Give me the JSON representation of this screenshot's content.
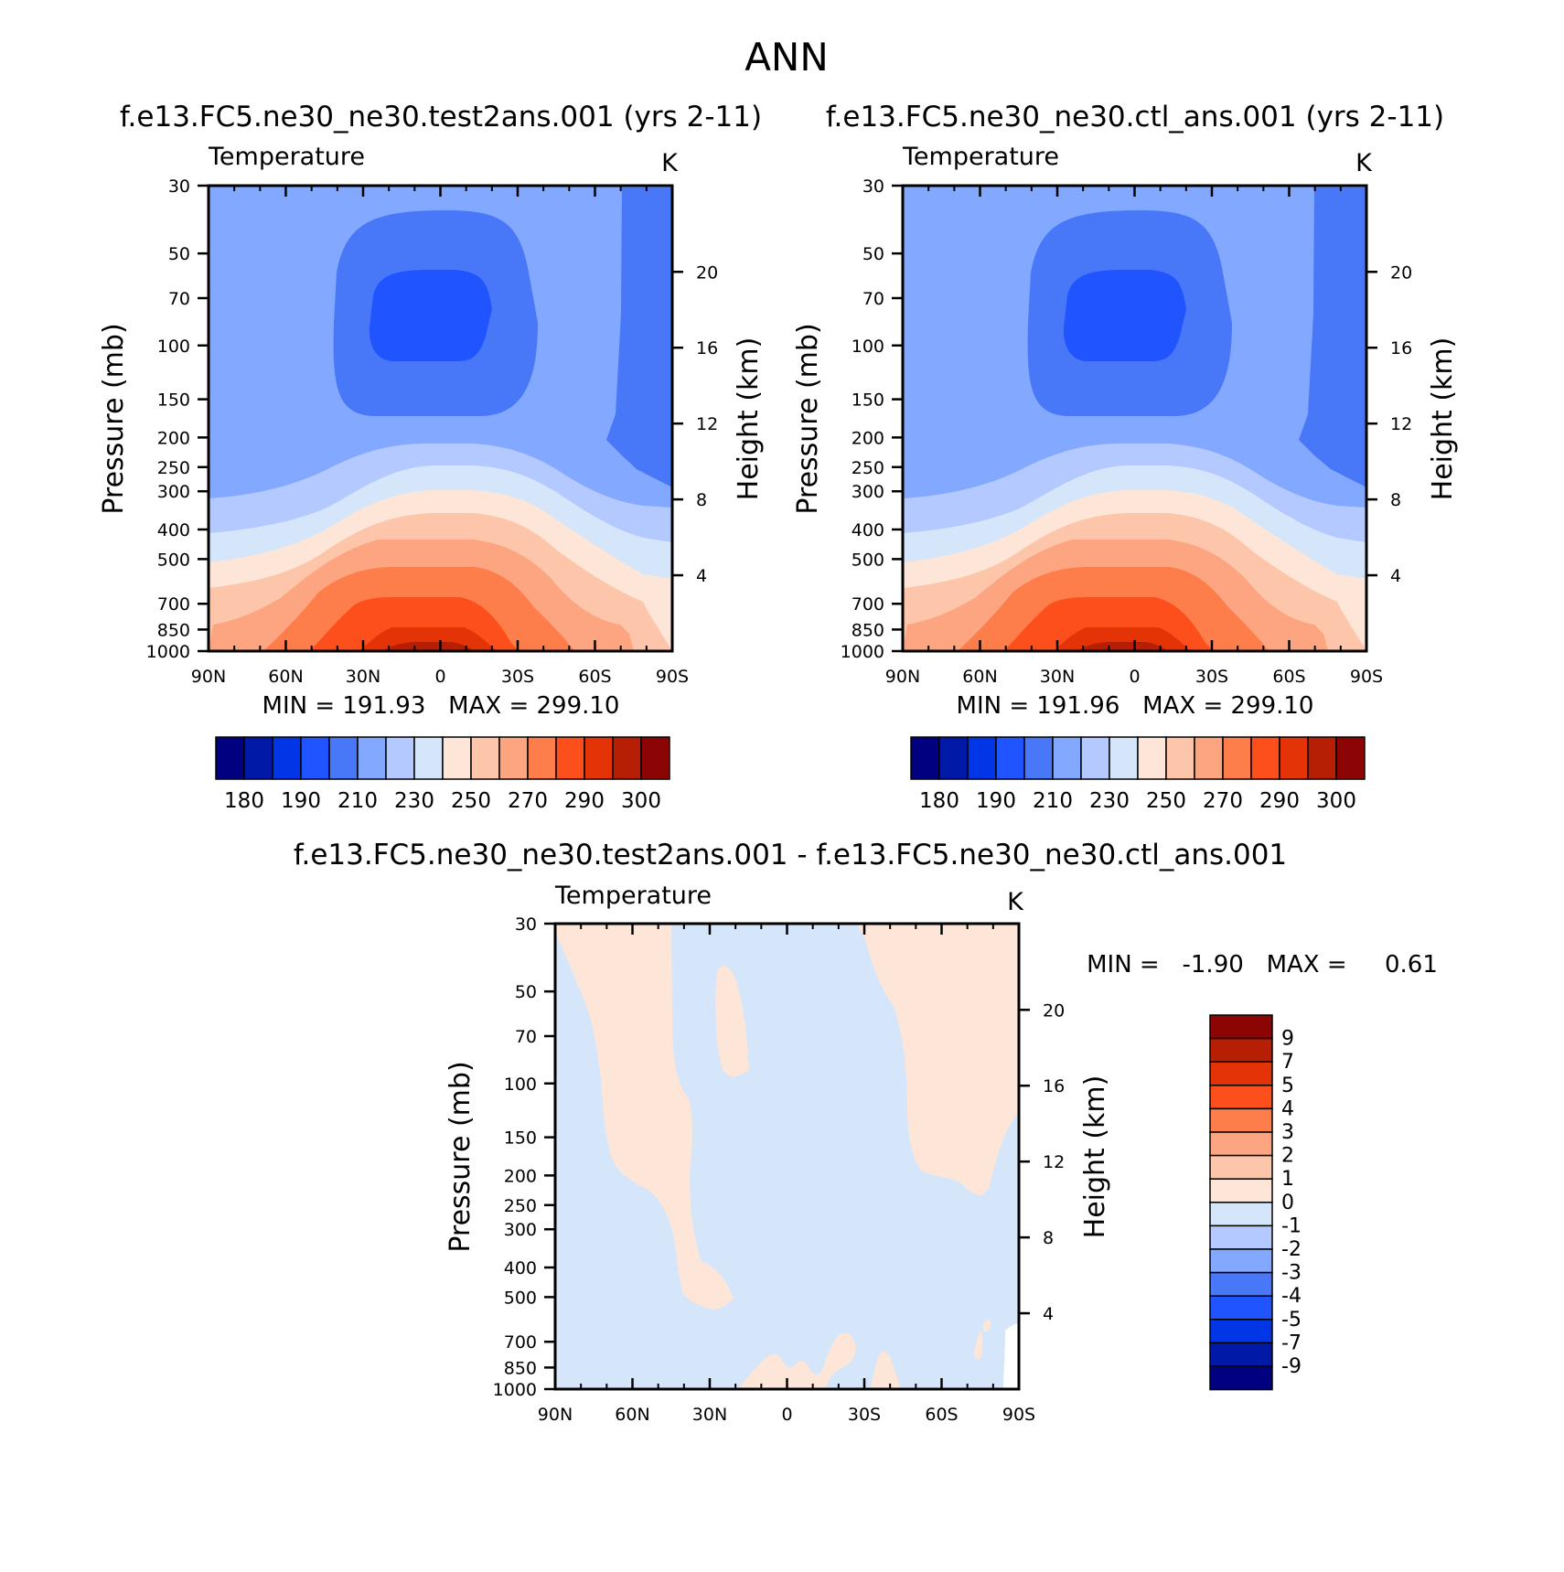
{
  "page_title": "ANN",
  "colors": {
    "temp_scale": [
      "#000080",
      "#0019a6",
      "#0036e5",
      "#1f54ff",
      "#4878f8",
      "#82a8ff",
      "#b3c9ff",
      "#d6e6fa",
      "#fde6d8",
      "#fdc6aa",
      "#fca580",
      "#fd7d4b",
      "#fc4f1b",
      "#e33307",
      "#b71f04",
      "#8c0404"
    ],
    "diff_scale": [
      "#000080",
      "#0019a6",
      "#0036e5",
      "#1f54ff",
      "#4878f8",
      "#82a8ff",
      "#b3c9ff",
      "#d6e6fa",
      "#fde6d8",
      "#fdc6aa",
      "#fca580",
      "#fd7d4b",
      "#fc4f1b",
      "#e33307",
      "#b71f04",
      "#8c0404"
    ]
  },
  "chart_data": [
    {
      "type": "heatmap",
      "title": "f.e13.FC5.ne30_ne30.test2ans.001 (yrs 2-11)",
      "variable": "Temperature",
      "units": "K",
      "xlabel": "",
      "ylabel": "Pressure (mb)",
      "ylabel_right": "Height (km)",
      "x_ticks": [
        "90N",
        "60N",
        "30N",
        "0",
        "30S",
        "60S",
        "90S"
      ],
      "x_values": [
        90,
        60,
        30,
        0,
        -30,
        -60,
        -90
      ],
      "y_ticks": [
        30,
        50,
        70,
        100,
        150,
        200,
        250,
        300,
        400,
        500,
        700,
        850,
        1000
      ],
      "y_right_ticks": [
        4,
        8,
        12,
        16,
        20
      ],
      "y_scale": "log",
      "ylim": [
        1000,
        30
      ],
      "stats": "MIN = 191.93   MAX = 299.10",
      "min": 191.93,
      "max": 299.1,
      "levels": [
        180,
        185,
        190,
        200,
        210,
        220,
        230,
        240,
        250,
        260,
        270,
        280,
        290,
        295,
        300
      ],
      "colorbar_labels": [
        "180",
        "190",
        "210",
        "230",
        "250",
        "270",
        "290",
        "300"
      ]
    },
    {
      "type": "heatmap",
      "title": "f.e13.FC5.ne30_ne30.ctl_ans.001 (yrs 2-11)",
      "variable": "Temperature",
      "units": "K",
      "xlabel": "",
      "ylabel": "Pressure (mb)",
      "ylabel_right": "Height (km)",
      "x_ticks": [
        "90N",
        "60N",
        "30N",
        "0",
        "30S",
        "60S",
        "90S"
      ],
      "x_values": [
        90,
        60,
        30,
        0,
        -30,
        -60,
        -90
      ],
      "y_ticks": [
        30,
        50,
        70,
        100,
        150,
        200,
        250,
        300,
        400,
        500,
        700,
        850,
        1000
      ],
      "y_right_ticks": [
        4,
        8,
        12,
        16,
        20
      ],
      "y_scale": "log",
      "ylim": [
        1000,
        30
      ],
      "stats": "MIN = 191.96   MAX = 299.10",
      "min": 191.96,
      "max": 299.1,
      "levels": [
        180,
        185,
        190,
        200,
        210,
        220,
        230,
        240,
        250,
        260,
        270,
        280,
        290,
        295,
        300
      ],
      "colorbar_labels": [
        "180",
        "190",
        "210",
        "230",
        "250",
        "270",
        "290",
        "300"
      ]
    },
    {
      "type": "heatmap",
      "title": "f.e13.FC5.ne30_ne30.test2ans.001 - f.e13.FC5.ne30_ne30.ctl_ans.001",
      "variable": "Temperature",
      "units": "K",
      "xlabel": "",
      "ylabel": "Pressure (mb)",
      "ylabel_right": "Height (km)",
      "x_ticks": [
        "90N",
        "60N",
        "30N",
        "0",
        "30S",
        "60S",
        "90S"
      ],
      "x_values": [
        90,
        60,
        30,
        0,
        -30,
        -60,
        -90
      ],
      "y_ticks": [
        30,
        50,
        70,
        100,
        150,
        200,
        250,
        300,
        400,
        500,
        700,
        850,
        1000
      ],
      "y_right_ticks": [
        4,
        8,
        12,
        16,
        20
      ],
      "y_scale": "log",
      "ylim": [
        1000,
        30
      ],
      "stats": "MIN =   -1.90   MAX =     0.61",
      "min": -1.9,
      "max": 0.61,
      "colorbar_labels": [
        "9",
        "7",
        "5",
        "4",
        "3",
        "2",
        "1",
        "0",
        "-1",
        "-2",
        "-3",
        "-4",
        "-5",
        "-7",
        "-9"
      ]
    }
  ]
}
